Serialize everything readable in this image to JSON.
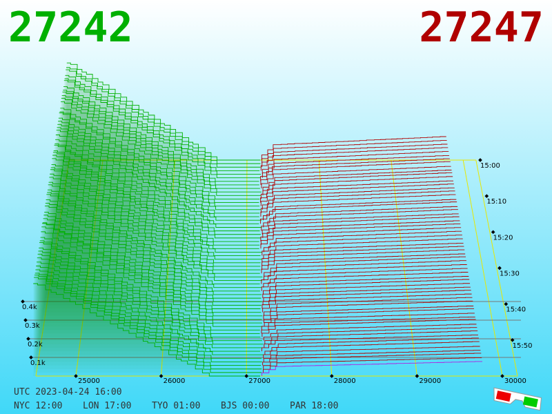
{
  "chart_data": {
    "type": "depth3d",
    "bid": 27242,
    "ask": 27247,
    "bid_color": "#00b000",
    "ask_color": "#b00000",
    "xticks": [
      25000,
      26000,
      27000,
      28000,
      29000,
      30000
    ],
    "time_ticks": [
      {
        "value": 0,
        "label": "15:00"
      },
      {
        "value": 10,
        "label": "15:10"
      },
      {
        "value": 20,
        "label": "15:20"
      },
      {
        "value": 30,
        "label": "15:30"
      },
      {
        "value": 40,
        "label": "15:40"
      },
      {
        "value": 50,
        "label": "15:50"
      }
    ],
    "depth_ticks": [
      {
        "value": 100,
        "label": "0.1k"
      },
      {
        "value": 200,
        "label": "0.2k"
      },
      {
        "value": 300,
        "label": "0.3k"
      },
      {
        "value": 400,
        "label": "0.4k"
      }
    ],
    "footer": {
      "utc": "UTC 2023-04-24 16:00",
      "cities": [
        "NYC 12:00",
        "LON 17:00",
        "TYO 01:00",
        "BJS 00:00",
        "PAR 18:00"
      ]
    }
  }
}
